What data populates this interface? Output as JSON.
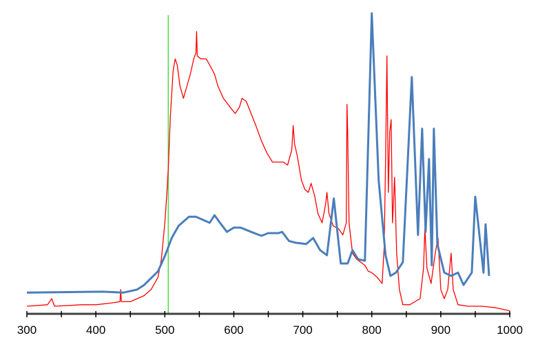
{
  "chart_data": {
    "type": "line",
    "title": "",
    "xlabel": "",
    "ylabel": "",
    "xlim": [
      300,
      1000
    ],
    "ylim": [
      0,
      100
    ],
    "x_ticks": [
      300,
      400,
      500,
      600,
      700,
      800,
      900,
      1000
    ],
    "x_minor_step": 50,
    "grid": false,
    "legend": "none",
    "marker_line": {
      "x": 505,
      "color": "#4cdc3c"
    },
    "series": [
      {
        "name": "red-spectrum",
        "color": "#ff0000",
        "x": [
          300,
          330,
          336,
          340,
          380,
          400,
          420,
          435,
          436,
          437,
          450,
          460,
          470,
          480,
          490,
          495,
          500,
          503,
          505,
          508,
          512,
          515,
          518,
          522,
          527,
          532,
          537,
          542,
          545,
          546,
          547,
          552,
          560,
          565,
          572,
          577,
          585,
          595,
          602,
          608,
          612,
          618,
          625,
          632,
          640,
          648,
          656,
          665,
          672,
          678,
          684,
          686,
          688,
          692,
          698,
          703,
          708,
          712,
          717,
          722,
          728,
          733,
          735,
          738,
          744,
          752,
          758,
          763,
          764,
          765,
          767,
          772,
          778,
          784,
          790,
          795,
          800,
          808,
          815,
          818,
          820,
          822,
          824,
          826,
          828,
          830,
          833,
          836,
          840,
          845,
          855,
          870,
          875,
          877,
          880,
          886,
          892,
          896,
          900,
          905,
          910,
          915,
          918,
          925,
          940,
          960,
          980,
          1000
        ],
        "y": [
          2.5,
          3,
          5,
          2.5,
          3,
          3,
          3.5,
          4,
          8,
          4,
          4,
          5,
          6,
          8,
          12,
          18,
          30,
          40,
          48,
          65,
          80,
          84,
          82,
          75,
          71,
          75,
          79,
          84,
          86,
          93,
          85,
          84,
          84,
          82,
          79,
          75,
          71,
          68,
          66,
          68,
          71,
          70,
          66,
          62,
          57,
          53,
          50,
          50,
          50,
          49,
          54,
          62,
          56,
          52,
          44,
          41,
          40,
          43,
          39,
          33,
          30,
          36,
          40,
          33,
          29,
          28,
          26,
          30,
          69,
          60,
          30,
          20,
          18,
          17,
          16,
          14,
          13.6,
          12,
          10,
          22,
          50,
          85,
          40,
          60,
          64,
          30,
          45,
          20,
          8,
          3,
          3,
          5,
          15,
          28,
          15,
          10,
          20,
          25,
          8,
          5,
          8,
          20,
          8,
          3,
          2.5,
          2.5,
          2,
          1
        ]
      },
      {
        "name": "blue-spectrum",
        "color": "#4a7ebb",
        "x": [
          300,
          410,
          440,
          460,
          470,
          490,
          500,
          510,
          520,
          535,
          545,
          555,
          565,
          572,
          580,
          590,
          600,
          610,
          625,
          640,
          650,
          665,
          670,
          680,
          690,
          705,
          715,
          725,
          735,
          745,
          755,
          765,
          772,
          780,
          790,
          800,
          810,
          820,
          827,
          835,
          845,
          858,
          867,
          873,
          878,
          883,
          887,
          890,
          895,
          905,
          915,
          925,
          933,
          945,
          950,
          962,
          965,
          970
        ],
        "y": [
          7,
          7.3,
          7,
          8,
          9.5,
          14,
          19,
          25,
          29,
          32,
          32,
          31,
          30,
          32.5,
          30,
          27,
          28.4,
          28.4,
          27,
          25.7,
          26.6,
          26.6,
          27,
          24,
          23.4,
          23,
          25,
          21,
          19.3,
          38,
          16.6,
          16.6,
          21,
          18,
          17.5,
          99,
          44,
          19.3,
          12.5,
          13.6,
          17,
          78,
          26,
          61,
          27,
          51,
          16,
          61,
          23,
          13.6,
          12.5,
          13.6,
          9.5,
          13.6,
          38.6,
          13.6,
          29.5,
          12.5
        ]
      }
    ]
  }
}
